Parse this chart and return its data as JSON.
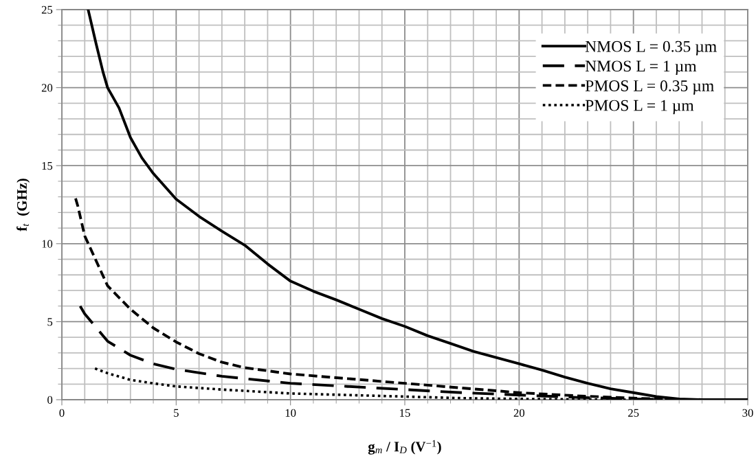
{
  "chart_data": {
    "type": "line",
    "xlabel": "g$_{m}$ / I$_{D}$ (V$^{−1}$)",
    "ylabel": "f$_{t}$  (GHz)",
    "xlim": [
      0,
      30
    ],
    "xticks": [
      0,
      5,
      10,
      15,
      20,
      25,
      30
    ],
    "ylim": [
      0,
      25
    ],
    "yticks": [
      0,
      5,
      10,
      15,
      20,
      25
    ],
    "grid": true,
    "legend": "top right",
    "marker": "none",
    "series": [
      {
        "name": "NMOS L = 0.35 µm",
        "color": "#000000",
        "line_style": "solid",
        "x": [
          1.15,
          1.5,
          1.8,
          2,
          2.5,
          3,
          3.5,
          4,
          5,
          6,
          7,
          8,
          9,
          10,
          11,
          12,
          13,
          14,
          15,
          16,
          17,
          18,
          19,
          20,
          21,
          22,
          23,
          24,
          25,
          26,
          27,
          28,
          29,
          30
        ],
        "values": [
          25,
          22.8,
          21,
          20,
          18.7,
          16.8,
          15.5,
          14.5,
          12.85,
          11.75,
          10.8,
          9.9,
          8.7,
          7.6,
          6.95,
          6.4,
          5.8,
          5.2,
          4.7,
          4.1,
          3.6,
          3.1,
          2.7,
          2.3,
          1.9,
          1.45,
          1.05,
          0.7,
          0.45,
          0.2,
          0.05,
          0,
          0,
          0
        ]
      },
      {
        "name": "NMOS L = 1 µm",
        "color": "#000000",
        "line_style": "dashed",
        "x": [
          0.8,
          1,
          2,
          3,
          4,
          5,
          7,
          10,
          12.5,
          15,
          17.5,
          20,
          22.5,
          25,
          27
        ],
        "values": [
          6.0,
          5.5,
          3.75,
          2.85,
          2.3,
          1.95,
          1.5,
          1.05,
          0.85,
          0.65,
          0.45,
          0.3,
          0.15,
          0.05,
          0
        ]
      },
      {
        "name": "PMOS L = 0.35 µm",
        "color": "#000000",
        "line_style": "dashed",
        "x": [
          0.6,
          0.7,
          1,
          2,
          3,
          4,
          5,
          6,
          7,
          8,
          9,
          10,
          12.5,
          15,
          17.5,
          20,
          22.5,
          25,
          27
        ],
        "values": [
          12.9,
          12.4,
          10.5,
          7.3,
          5.8,
          4.6,
          3.7,
          2.95,
          2.4,
          2.05,
          1.85,
          1.65,
          1.35,
          1.05,
          0.75,
          0.45,
          0.25,
          0.1,
          0
        ]
      },
      {
        "name": "PMOS L = 1 µm",
        "color": "#000000",
        "line_style": "dotted",
        "x": [
          1.45,
          2,
          3,
          4,
          5,
          7,
          10,
          12.5,
          15,
          17.5,
          20,
          22.5,
          25
        ],
        "values": [
          2.0,
          1.7,
          1.27,
          1.05,
          0.85,
          0.65,
          0.4,
          0.3,
          0.2,
          0.1,
          0.05,
          0.02,
          0
        ]
      }
    ]
  }
}
